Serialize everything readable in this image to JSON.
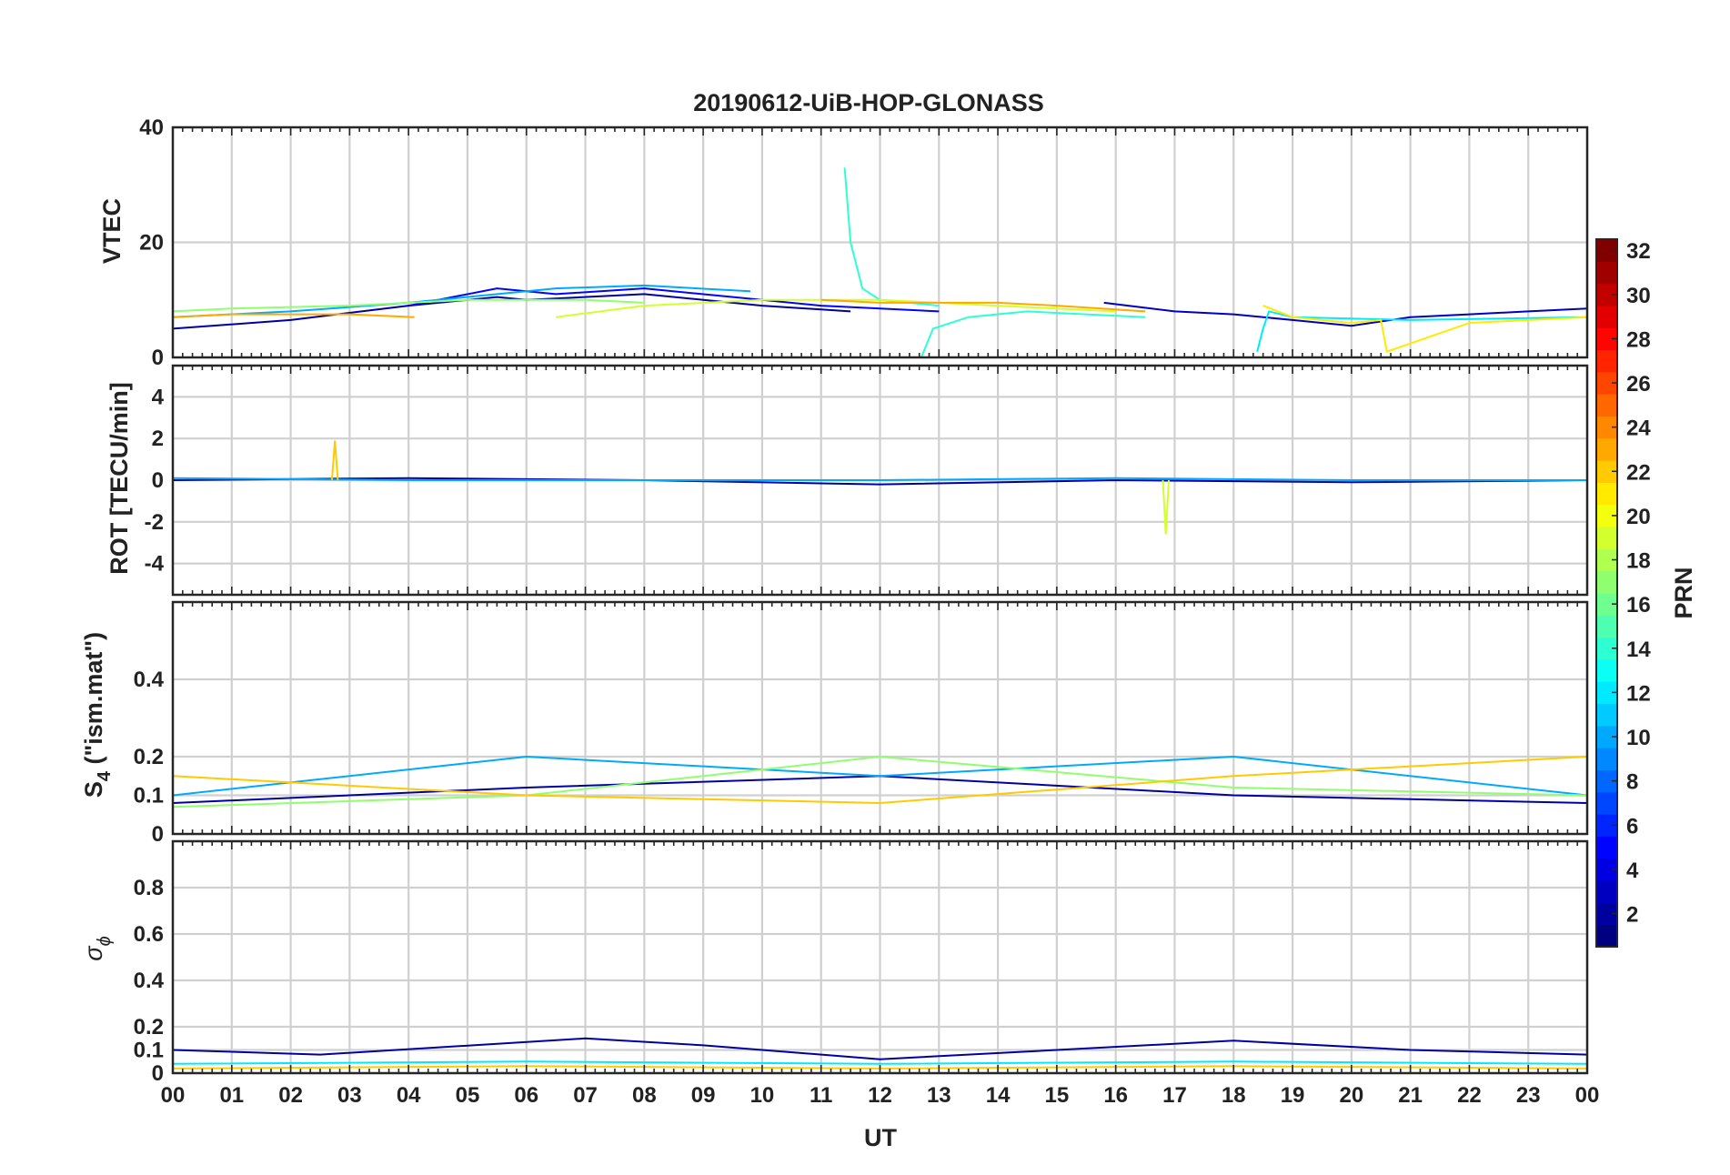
{
  "chart_data": [
    {
      "type": "line",
      "panel": "vtec",
      "title": "20190612-UiB-HOP-GLONASS",
      "ylabel": "VTEC",
      "ylim": [
        0,
        40
      ],
      "yticks": [
        0,
        20,
        40
      ],
      "grid": true,
      "series": [
        {
          "name": "PRN 2",
          "prn": 2,
          "x": [
            0,
            2,
            4,
            5.5,
            6,
            8,
            10,
            11.5
          ],
          "y": [
            5,
            6.5,
            9,
            10.5,
            10,
            11,
            9,
            8
          ]
        },
        {
          "name": "PRN 3",
          "prn": 3,
          "x": [
            15.8,
            17,
            18,
            19,
            20,
            21,
            22,
            23,
            24
          ],
          "y": [
            9.5,
            8,
            7.5,
            6.5,
            5.5,
            7,
            7.5,
            8,
            8.5
          ]
        },
        {
          "name": "PRN 5",
          "prn": 5,
          "x": [
            4,
            5.5,
            6.5,
            8,
            10,
            11,
            13
          ],
          "y": [
            9,
            12,
            11,
            12,
            10,
            9,
            8
          ]
        },
        {
          "name": "PRN 10",
          "prn": 10,
          "x": [
            0,
            2,
            4,
            6.5,
            8,
            9.8
          ],
          "y": [
            7,
            8,
            9.5,
            12,
            12.5,
            11.5
          ]
        },
        {
          "name": "PRN 12",
          "prn": 12,
          "x": [
            18.4,
            18.5,
            18.6,
            19,
            21,
            24
          ],
          "y": [
            1,
            5,
            8,
            7,
            6.5,
            7
          ]
        },
        {
          "name": "PRN 14",
          "prn": 14,
          "x": [
            11.4,
            11.5,
            11.7,
            12,
            12.5,
            13
          ],
          "y": [
            33,
            20,
            12,
            10,
            9.5,
            9
          ]
        },
        {
          "name": "PRN 14b",
          "prn": 14,
          "x": [
            12.7,
            12.9,
            13.5,
            14.5,
            15.5,
            16.5
          ],
          "y": [
            0,
            5,
            7,
            8,
            7.5,
            7
          ]
        },
        {
          "name": "PRN 17",
          "prn": 17,
          "x": [
            0,
            1,
            3,
            5,
            7,
            8
          ],
          "y": [
            8,
            8.5,
            9,
            10,
            10,
            9.5
          ]
        },
        {
          "name": "PRN 19",
          "prn": 19,
          "x": [
            6.5,
            8,
            10,
            12,
            14,
            16
          ],
          "y": [
            7,
            9,
            10,
            10,
            9,
            8
          ]
        },
        {
          "name": "PRN 21",
          "prn": 21,
          "x": [
            18.5,
            19,
            20,
            20.5,
            20.6,
            22,
            24
          ],
          "y": [
            9,
            7,
            6,
            6.5,
            1,
            6,
            7
          ]
        },
        {
          "name": "PRN 23",
          "prn": 23,
          "x": [
            0,
            1,
            2,
            3,
            4.1
          ],
          "y": [
            7,
            7.5,
            7.5,
            7.5,
            7
          ]
        },
        {
          "name": "PRN 23b",
          "prn": 23,
          "x": [
            11,
            12,
            13,
            14,
            15,
            16.5
          ],
          "y": [
            10,
            9.5,
            9.5,
            9.5,
            9,
            8
          ]
        }
      ]
    },
    {
      "type": "line",
      "panel": "rot",
      "ylabel": "ROT [TECU/min]",
      "ylim": [
        -5.5,
        5.5
      ],
      "yticks": [
        -4,
        -2,
        0,
        2,
        4
      ],
      "grid": true,
      "series": [
        {
          "name": "PRN 2",
          "prn": 2,
          "x": [
            0,
            4,
            8,
            12,
            16,
            20,
            24
          ],
          "y": [
            0,
            0.1,
            0,
            -0.2,
            0,
            -0.1,
            0
          ]
        },
        {
          "name": "PRN 10",
          "prn": 10,
          "x": [
            0,
            4,
            8,
            12,
            16,
            20,
            24
          ],
          "y": [
            0.1,
            0,
            0,
            0,
            0.1,
            0,
            0
          ]
        },
        {
          "name": "PRN 19",
          "prn": 19,
          "x": [
            16.8,
            16.85,
            16.9
          ],
          "y": [
            0,
            -2.6,
            0
          ]
        },
        {
          "name": "PRN 22",
          "prn": 22,
          "x": [
            2.7,
            2.75,
            2.8
          ],
          "y": [
            0,
            1.9,
            0
          ]
        }
      ]
    },
    {
      "type": "line",
      "panel": "s4",
      "ylabel": "S",
      "ylabel_subscript": "4",
      "ylabel_suffix": " (\"ism.mat\")",
      "ylim": [
        0,
        0.6
      ],
      "yticks": [
        0,
        0.1,
        0.2,
        0.4
      ],
      "grid": true,
      "series": [
        {
          "name": "PRN 2",
          "prn": 2,
          "x": [
            0,
            6,
            12,
            18,
            24
          ],
          "y": [
            0.08,
            0.12,
            0.15,
            0.1,
            0.08
          ]
        },
        {
          "name": "PRN 10",
          "prn": 10,
          "x": [
            0,
            6,
            12,
            18,
            24
          ],
          "y": [
            0.1,
            0.2,
            0.15,
            0.2,
            0.1
          ]
        },
        {
          "name": "PRN 17",
          "prn": 17,
          "x": [
            0,
            6,
            12,
            18,
            24
          ],
          "y": [
            0.07,
            0.1,
            0.2,
            0.12,
            0.1
          ]
        },
        {
          "name": "PRN 22",
          "prn": 22,
          "x": [
            0,
            6,
            12,
            18,
            24
          ],
          "y": [
            0.15,
            0.1,
            0.08,
            0.15,
            0.2
          ]
        }
      ]
    },
    {
      "type": "line",
      "panel": "sigma_phi",
      "ylabel": "σ",
      "ylabel_subscript": "ϕ",
      "ylim": [
        0,
        1
      ],
      "yticks": [
        0,
        0.1,
        0.2,
        0.4,
        0.6,
        0.8
      ],
      "grid": true,
      "series": [
        {
          "name": "PRN 2",
          "prn": 2,
          "x": [
            0,
            2.5,
            7,
            9,
            12,
            18,
            21,
            24
          ],
          "y": [
            0.1,
            0.08,
            0.15,
            0.12,
            0.06,
            0.14,
            0.1,
            0.08
          ]
        },
        {
          "name": "PRN 12",
          "prn": 12,
          "x": [
            0,
            6,
            12,
            18,
            24
          ],
          "y": [
            0.04,
            0.05,
            0.04,
            0.05,
            0.04
          ]
        },
        {
          "name": "PRN 22",
          "prn": 22,
          "x": [
            0,
            6,
            12,
            18,
            24
          ],
          "y": [
            0.02,
            0.03,
            0.02,
            0.03,
            0.02
          ]
        }
      ]
    }
  ],
  "x_axis": {
    "label": "UT",
    "range": [
      0,
      24
    ],
    "tick_labels": [
      "00",
      "01",
      "02",
      "03",
      "04",
      "05",
      "06",
      "07",
      "08",
      "09",
      "10",
      "11",
      "12",
      "13",
      "14",
      "15",
      "16",
      "17",
      "18",
      "19",
      "20",
      "21",
      "22",
      "23",
      "00"
    ]
  },
  "colorbar": {
    "label": "PRN",
    "colormap": "jet",
    "range": [
      1,
      32
    ],
    "ticks": [
      2,
      4,
      6,
      8,
      10,
      12,
      14,
      16,
      18,
      20,
      22,
      24,
      26,
      28,
      30,
      32
    ]
  },
  "colors": {
    "grid": "#d0d0d0",
    "axes": "#262626",
    "text": "#222222"
  }
}
